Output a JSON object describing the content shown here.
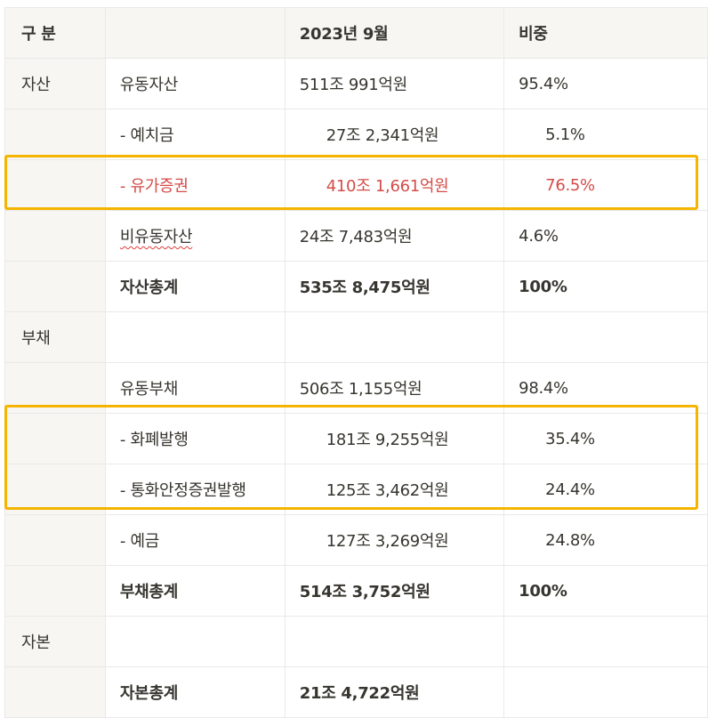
{
  "header": {
    "col1": "구 분",
    "col2": "",
    "col3": "2023년 9월",
    "col4": "비중"
  },
  "rows": [
    {
      "cat": "자산",
      "item": "유동자산",
      "amount": "511조 991억원",
      "ratio": "95.4%"
    },
    {
      "cat": "",
      "item": "- 예치금",
      "amount": "27조 2,341억원",
      "ratio": "5.1%"
    },
    {
      "cat": "",
      "item": "- 유가증권",
      "amount": "410조 1,661억원",
      "ratio": "76.5%"
    },
    {
      "cat": "",
      "item": "비유동자산",
      "amount": "24조 7,483억원",
      "ratio": "4.6%"
    },
    {
      "cat": "",
      "item": "자산총계",
      "amount": "535조 8,475억원",
      "ratio": "100%"
    },
    {
      "cat": "부채",
      "item": "",
      "amount": "",
      "ratio": ""
    },
    {
      "cat": "",
      "item": "유동부채",
      "amount": "506조 1,155억원",
      "ratio": "98.4%"
    },
    {
      "cat": "",
      "item": "- 화폐발행",
      "amount": "181조 9,255억원",
      "ratio": "35.4%"
    },
    {
      "cat": "",
      "item": "- 통화안정증권발행",
      "amount": "125조 3,462억원",
      "ratio": "24.4%"
    },
    {
      "cat": "",
      "item": "- 예금",
      "amount": "127조 3,269억원",
      "ratio": "24.8%"
    },
    {
      "cat": "",
      "item": "부채총계",
      "amount": "514조 3,752억원",
      "ratio": "100%"
    },
    {
      "cat": "자본",
      "item": "",
      "amount": "",
      "ratio": ""
    },
    {
      "cat": "",
      "item": "자본총계",
      "amount": "21조 4,722억원",
      "ratio": ""
    }
  ],
  "colors": {
    "highlight_border": "#f5b400",
    "red_text": "#d44c47"
  }
}
